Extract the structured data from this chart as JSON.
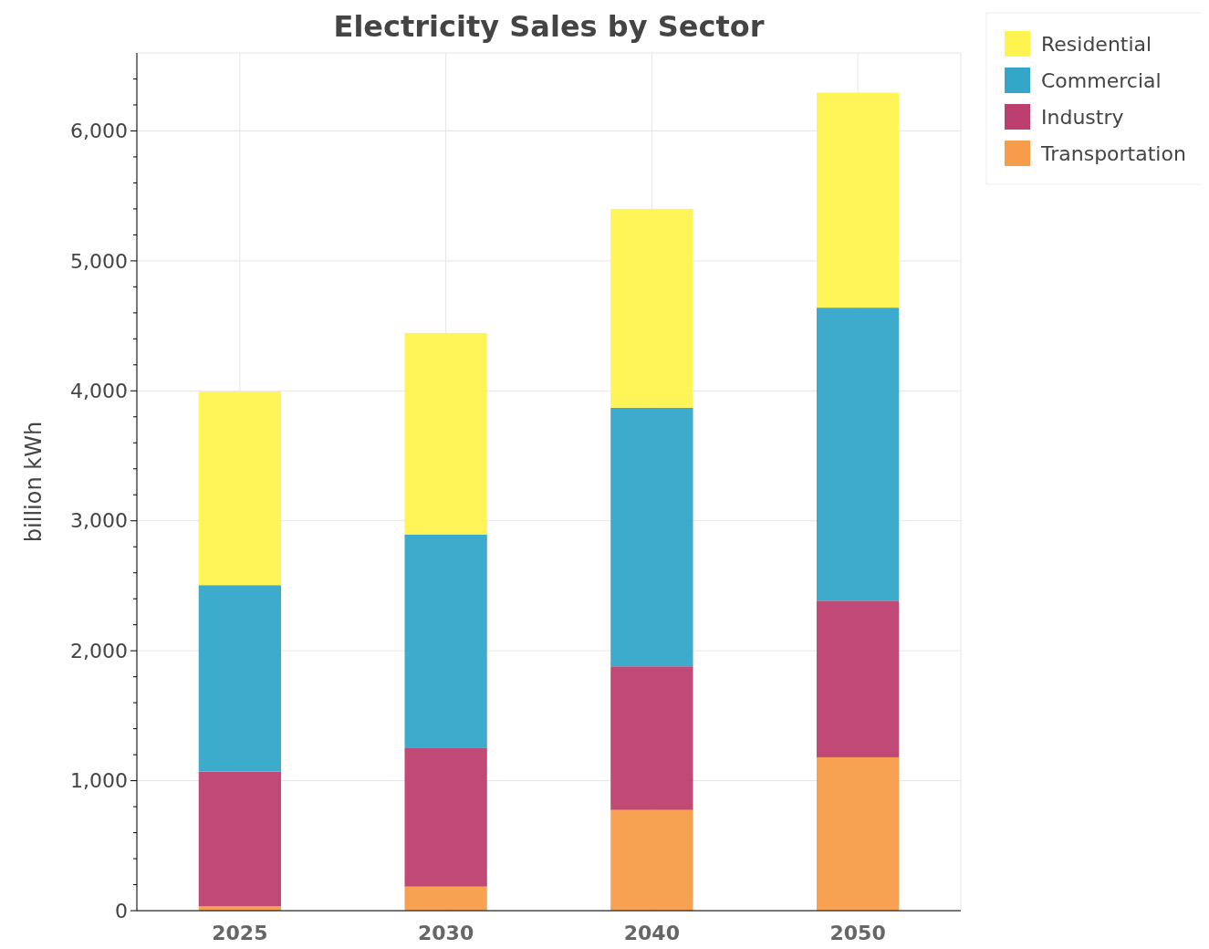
{
  "chart_data": {
    "type": "bar",
    "title": "Electricity Sales by Sector",
    "ylabel": "billion kWh",
    "categories": [
      "2025",
      "2030",
      "2040",
      "2050"
    ],
    "stacked": true,
    "series": [
      {
        "name": "Transportation",
        "color": "#f79c4a",
        "values": [
          35,
          185,
          775,
          1180
        ]
      },
      {
        "name": "Industry",
        "color": "#bd3f6f",
        "values": [
          1035,
          1065,
          1105,
          1205
        ]
      },
      {
        "name": "Commercial",
        "color": "#33a6c9",
        "values": [
          1435,
          1645,
          1990,
          2255
        ]
      },
      {
        "name": "Residential",
        "color": "#fff44f",
        "values": [
          1490,
          1550,
          1530,
          1655
        ]
      }
    ],
    "ylim": [
      0,
      6600
    ],
    "yticks": [
      0,
      {
        "value": 200,
        "label": null
      },
      {
        "value": 400,
        "label": null
      },
      {
        "value": 600,
        "label": null
      },
      {
        "value": 800,
        "label": null
      },
      {
        "value": 1000,
        "label": "1,000"
      },
      {
        "value": 1200,
        "label": null
      },
      {
        "value": 1400,
        "label": null
      },
      {
        "value": 1600,
        "label": null
      },
      {
        "value": 1800,
        "label": null
      },
      {
        "value": 2000,
        "label": "2,000"
      },
      {
        "value": 2200,
        "label": null
      },
      {
        "value": 2400,
        "label": null
      },
      {
        "value": 2600,
        "label": null
      },
      {
        "value": 2800,
        "label": null
      },
      {
        "value": 3000,
        "label": "3,000"
      },
      {
        "value": 3200,
        "label": null
      },
      {
        "value": 3400,
        "label": null
      },
      {
        "value": 3600,
        "label": null
      },
      {
        "value": 3800,
        "label": null
      },
      {
        "value": 4000,
        "label": "4,000"
      },
      {
        "value": 4200,
        "label": null
      },
      {
        "value": 4400,
        "label": null
      },
      {
        "value": 4600,
        "label": null
      },
      {
        "value": 4800,
        "label": null
      },
      {
        "value": 5000,
        "label": "5,000"
      },
      {
        "value": 5200,
        "label": null
      },
      {
        "value": 5400,
        "label": null
      },
      {
        "value": 5600,
        "label": null
      },
      {
        "value": 5800,
        "label": null
      },
      {
        "value": 6000,
        "label": "6,000"
      },
      {
        "value": 6200,
        "label": null
      },
      {
        "value": 6400,
        "label": null
      }
    ],
    "grid": true,
    "legend": "top right"
  }
}
